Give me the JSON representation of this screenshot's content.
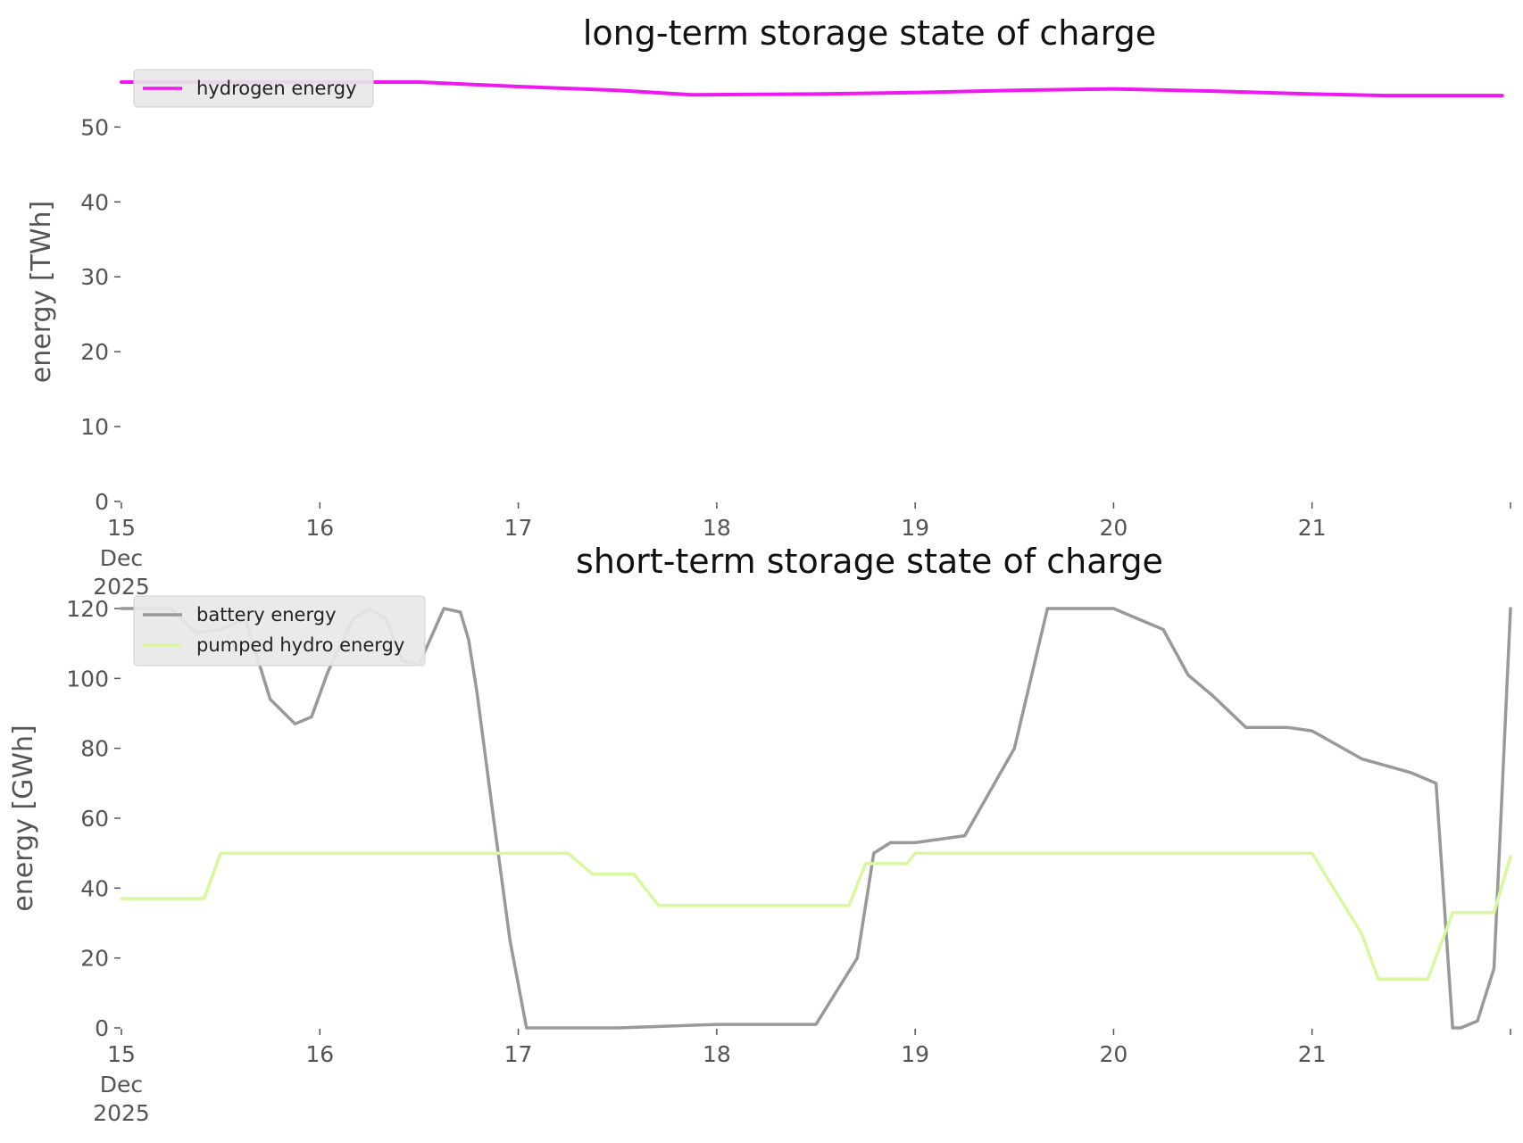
{
  "chart_data": [
    {
      "type": "line",
      "title": "long-term storage state of charge",
      "xlabel": "",
      "ylabel": "energy [TWh]",
      "ylim": [
        0,
        56
      ],
      "yticks": [
        0,
        10,
        20,
        30,
        40,
        50
      ],
      "ytick_labels": [
        "0",
        "10",
        "20",
        "30",
        "40",
        "50"
      ],
      "xlim": [
        "2025-12-15",
        "2025-12-22"
      ],
      "xticks": [
        "2025-12-15",
        "2025-12-16",
        "2025-12-17",
        "2025-12-18",
        "2025-12-19",
        "2025-12-20",
        "2025-12-21",
        "2025-12-22"
      ],
      "xtick_labels": [
        "15",
        "16",
        "17",
        "18",
        "19",
        "20",
        "21",
        ""
      ],
      "xtick_sublabels": [
        "Dec",
        "2025"
      ],
      "grid": false,
      "legend": "top-left",
      "series": [
        {
          "name": "hydrogen energy",
          "color": "#f018f0",
          "x": [
            "2025-12-15 00:00",
            "2025-12-15 12:00",
            "2025-12-16 00:00",
            "2025-12-16 12:00",
            "2025-12-17 00:00",
            "2025-12-17 12:00",
            "2025-12-17 21:00",
            "2025-12-18 12:00",
            "2025-12-19 00:00",
            "2025-12-19 12:00",
            "2025-12-20 00:00",
            "2025-12-20 12:00",
            "2025-12-21 00:00",
            "2025-12-21 09:00",
            "2025-12-21 18:00",
            "2025-12-21 23:00"
          ],
          "y": [
            56,
            56,
            56,
            56,
            55.4,
            54.9,
            54.3,
            54.4,
            54.6,
            54.9,
            55.1,
            54.8,
            54.4,
            54.2,
            54.2,
            54.2
          ]
        }
      ]
    },
    {
      "type": "line",
      "title": "short-term storage state of charge",
      "xlabel": "",
      "ylabel": "energy [GWh]",
      "ylim": [
        0,
        120
      ],
      "yticks": [
        0,
        20,
        40,
        60,
        80,
        100,
        120
      ],
      "ytick_labels": [
        "0",
        "20",
        "40",
        "60",
        "80",
        "100",
        "120"
      ],
      "xlim": [
        "2025-12-15",
        "2025-12-22"
      ],
      "xticks": [
        "2025-12-15",
        "2025-12-16",
        "2025-12-17",
        "2025-12-18",
        "2025-12-19",
        "2025-12-20",
        "2025-12-21",
        "2025-12-22"
      ],
      "xtick_labels": [
        "15",
        "16",
        "17",
        "18",
        "19",
        "20",
        "21",
        ""
      ],
      "xtick_sublabels": [
        "Dec",
        "2025"
      ],
      "grid": false,
      "legend": "top-left",
      "series": [
        {
          "name": "battery energy",
          "color": "#999999",
          "x": [
            "2025-12-15 00:00",
            "2025-12-15 06:00",
            "2025-12-15 09:00",
            "2025-12-15 12:00",
            "2025-12-15 15:00",
            "2025-12-15 18:00",
            "2025-12-15 21:00",
            "2025-12-15 23:00",
            "2025-12-16 01:00",
            "2025-12-16 04:00",
            "2025-12-16 06:00",
            "2025-12-16 08:00",
            "2025-12-16 10:00",
            "2025-12-16 12:00",
            "2025-12-16 15:00",
            "2025-12-16 17:00",
            "2025-12-16 18:00",
            "2025-12-16 19:00",
            "2025-12-16 21:00",
            "2025-12-16 23:00",
            "2025-12-17 01:00",
            "2025-12-17 03:00",
            "2025-12-17 05:00",
            "2025-12-17 06:00",
            "2025-12-17 12:00",
            "2025-12-18 00:00",
            "2025-12-18 12:00",
            "2025-12-18 17:00",
            "2025-12-18 19:00",
            "2025-12-18 21:00",
            "2025-12-19 00:00",
            "2025-12-19 06:00",
            "2025-12-19 12:00",
            "2025-12-19 16:00",
            "2025-12-19 18:00",
            "2025-12-19 20:00",
            "2025-12-19 22:00",
            "2025-12-20 00:00",
            "2025-12-20 06:00",
            "2025-12-20 09:00",
            "2025-12-20 11:00",
            "2025-12-20 12:00",
            "2025-12-20 16:00",
            "2025-12-20 19:00",
            "2025-12-20 21:00",
            "2025-12-21 00:00",
            "2025-12-21 06:00",
            "2025-12-21 12:00",
            "2025-12-21 15:00",
            "2025-12-21 17:00",
            "2025-12-21 18:00",
            "2025-12-21 20:00",
            "2025-12-21 22:00",
            "2025-12-22 00:00"
          ],
          "y": [
            120,
            120,
            113,
            114,
            117,
            94,
            87,
            89,
            102,
            117,
            120,
            117,
            105,
            104,
            120,
            119,
            111,
            96,
            60,
            25,
            0,
            0,
            0,
            0,
            0,
            1,
            1,
            20,
            50,
            53,
            53,
            55,
            80,
            120,
            120,
            120,
            120,
            120,
            114,
            101,
            97,
            95,
            86,
            86,
            86,
            85,
            77,
            73,
            70,
            0,
            0,
            2,
            17,
            120
          ]
        },
        {
          "name": "pumped hydro energy",
          "color": "#d8f8a0",
          "x": [
            "2025-12-15 00:00",
            "2025-12-15 10:00",
            "2025-12-15 12:00",
            "2025-12-16 00:00",
            "2025-12-17 00:00",
            "2025-12-17 06:00",
            "2025-12-17 09:00",
            "2025-12-17 14:00",
            "2025-12-17 17:00",
            "2025-12-18 00:00",
            "2025-12-18 12:00",
            "2025-12-18 16:00",
            "2025-12-18 18:00",
            "2025-12-18 23:00",
            "2025-12-19 00:00",
            "2025-12-20 00:00",
            "2025-12-21 00:00",
            "2025-12-21 06:00",
            "2025-12-21 08:00",
            "2025-12-21 12:00",
            "2025-12-21 14:00",
            "2025-12-21 17:00",
            "2025-12-21 20:00",
            "2025-12-21 22:00",
            "2025-12-22 00:00"
          ],
          "y": [
            37,
            37,
            50,
            50,
            50,
            50,
            44,
            44,
            35,
            35,
            35,
            35,
            47,
            47,
            50,
            50,
            50,
            27,
            14,
            14,
            14,
            33,
            33,
            33,
            49
          ]
        }
      ]
    }
  ]
}
